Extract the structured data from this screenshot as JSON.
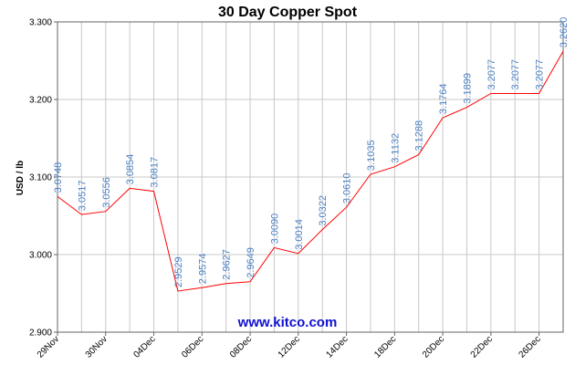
{
  "chart_data": {
    "type": "line",
    "title": "30 Day Copper Spot",
    "xlabel": "",
    "ylabel": "USD / lb",
    "ylim": [
      2.9,
      3.3
    ],
    "yticks": [
      "2.900",
      "3.000",
      "3.100",
      "3.200",
      "3.300"
    ],
    "x_tick_labels": [
      "29Nov",
      "30Nov",
      "04Dec",
      "06Dec",
      "08Dec",
      "12Dec",
      "14Dec",
      "18Dec",
      "20Dec",
      "22Dec",
      "26Dec"
    ],
    "grid": true,
    "line_color": "#ff0000",
    "label_color": "#4a7fc1",
    "series": [
      {
        "values": [
          3.0748,
          3.0517,
          3.0556,
          3.0854,
          3.0817,
          2.9529,
          2.9574,
          2.9627,
          2.9649,
          3.009,
          3.0014,
          3.0322,
          3.061,
          3.1035,
          3.1132,
          3.1288,
          3.1764,
          3.1899,
          3.2077,
          3.2077,
          3.2077,
          3.262
        ],
        "labels": [
          "3.0748",
          "3.0517",
          "3.0556",
          "3.0854",
          "3.0817",
          "2.9529",
          "2.9574",
          "2.9627",
          "2.9649",
          "3.0090",
          "3.0014",
          "3.0322",
          "3.0610",
          "3.1035",
          "3.1132",
          "3.1288",
          "3.1764",
          "3.1899",
          "3.2077",
          "3.2077",
          "3.2077",
          "3.2620"
        ]
      }
    ]
  },
  "watermark": {
    "text": "www.kitco.com",
    "color": "#1010d0"
  }
}
